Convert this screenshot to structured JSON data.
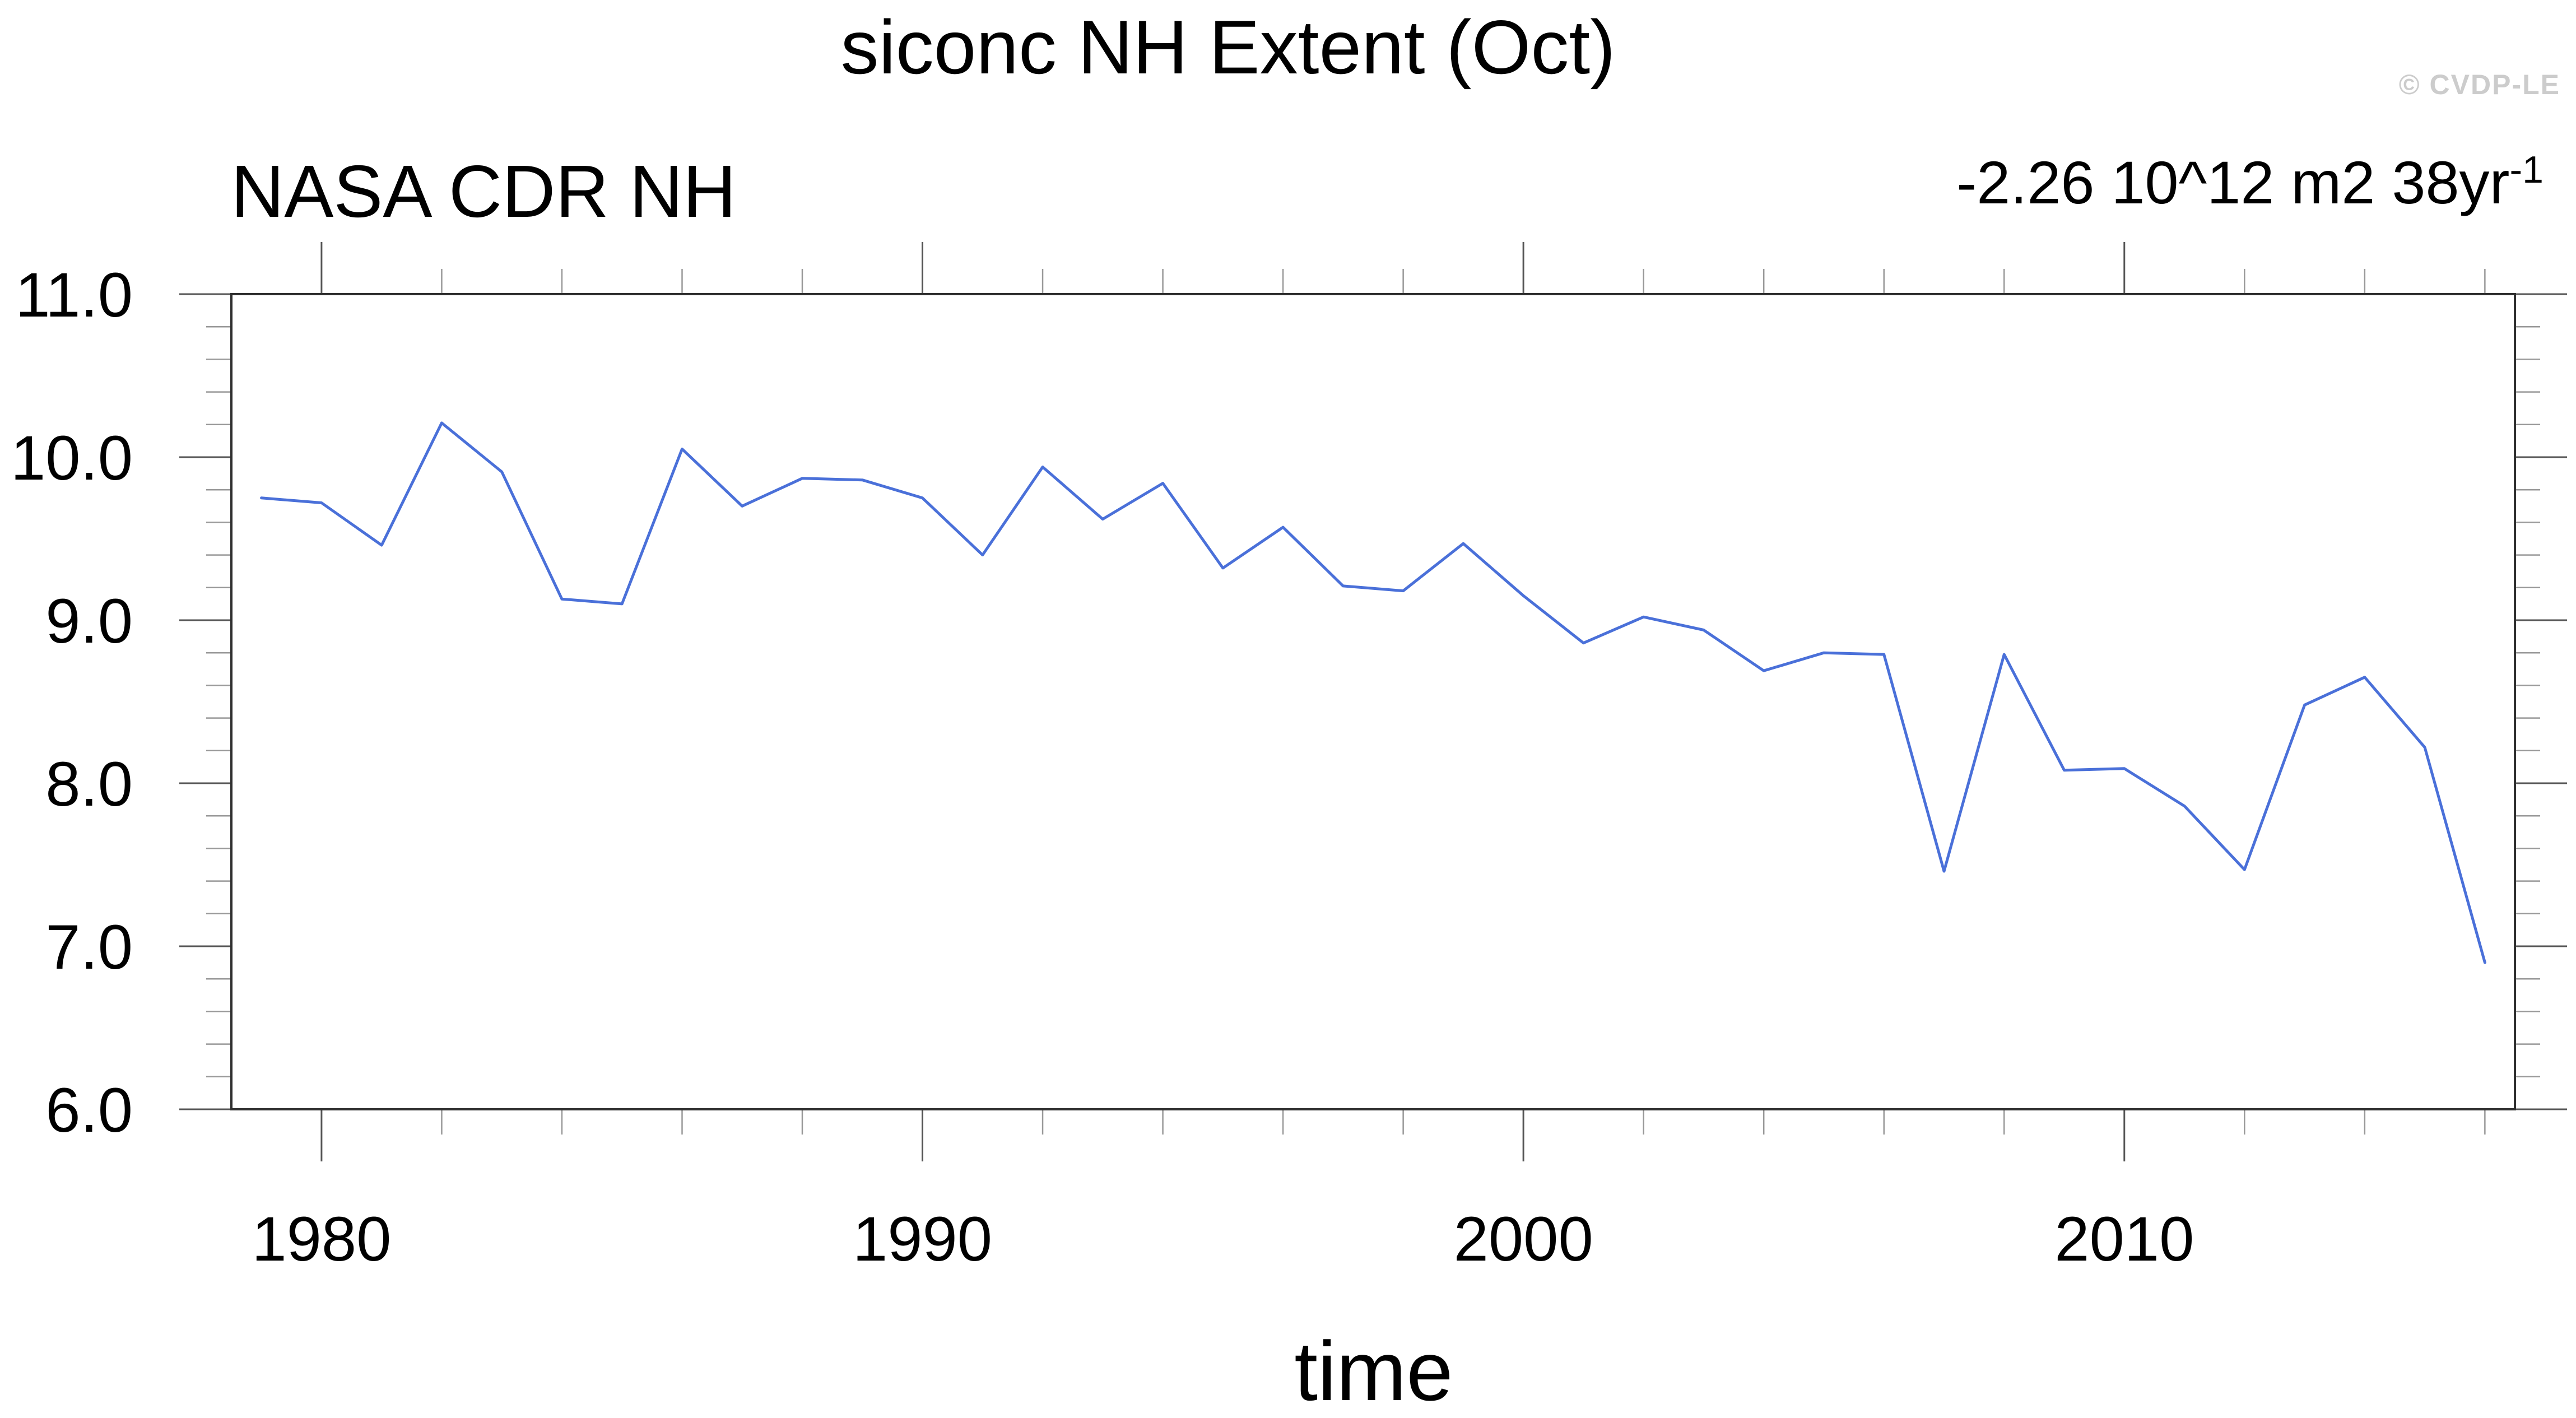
{
  "header": {
    "title": "siconc NH Extent (Oct)",
    "left_label": "NASA CDR NH",
    "trend_label": "-2.26 10^12 m2 38yr",
    "trend_exponent": "-1",
    "watermark": "© CVDP-LE"
  },
  "axis": {
    "xlabel": "time"
  },
  "chart_data": {
    "type": "line",
    "title": "siconc NH Extent (Oct)",
    "series_name": "NASA CDR NH",
    "trend_annotation": "-2.26 10^12 m2 38yr^-1",
    "xlabel": "time",
    "ylabel": "",
    "x": [
      1979,
      1980,
      1981,
      1982,
      1983,
      1984,
      1985,
      1986,
      1987,
      1988,
      1989,
      1990,
      1991,
      1992,
      1993,
      1994,
      1995,
      1996,
      1997,
      1998,
      1999,
      2000,
      2001,
      2002,
      2003,
      2004,
      2005,
      2006,
      2007,
      2008,
      2009,
      2010,
      2011,
      2012,
      2013,
      2014,
      2015,
      2016
    ],
    "values": [
      9.75,
      9.72,
      9.46,
      10.21,
      9.91,
      9.13,
      9.1,
      10.05,
      9.7,
      9.87,
      9.86,
      9.75,
      9.4,
      9.94,
      9.62,
      9.84,
      9.32,
      9.57,
      9.21,
      9.18,
      9.47,
      9.15,
      8.86,
      9.02,
      8.94,
      8.69,
      8.8,
      8.79,
      7.46,
      8.79,
      8.08,
      8.09,
      7.86,
      7.47,
      8.48,
      8.65,
      8.22,
      6.9
    ],
    "xlim": [
      1978.5,
      2016.5
    ],
    "ylim": [
      6.0,
      11.0
    ],
    "x_major_ticks": [
      1980,
      1990,
      2000,
      2010
    ],
    "x_major_tick_labels": [
      "1980",
      "1990",
      "2000",
      "2010"
    ],
    "x_minor_step": 2,
    "y_major_ticks": [
      6.0,
      7.0,
      8.0,
      9.0,
      10.0,
      11.0
    ],
    "y_major_tick_labels": [
      "6.0",
      "7.0",
      "8.0",
      "9.0",
      "10.0",
      "11.0"
    ],
    "y_minor_step": 0.2,
    "grid": false,
    "legend_position": "none",
    "line_color": "#4a70d9",
    "frame_color": "#2f2f2f",
    "major_tick_color": "#555555",
    "minor_tick_color": "#999999",
    "watermark_color": "#cccccc"
  }
}
